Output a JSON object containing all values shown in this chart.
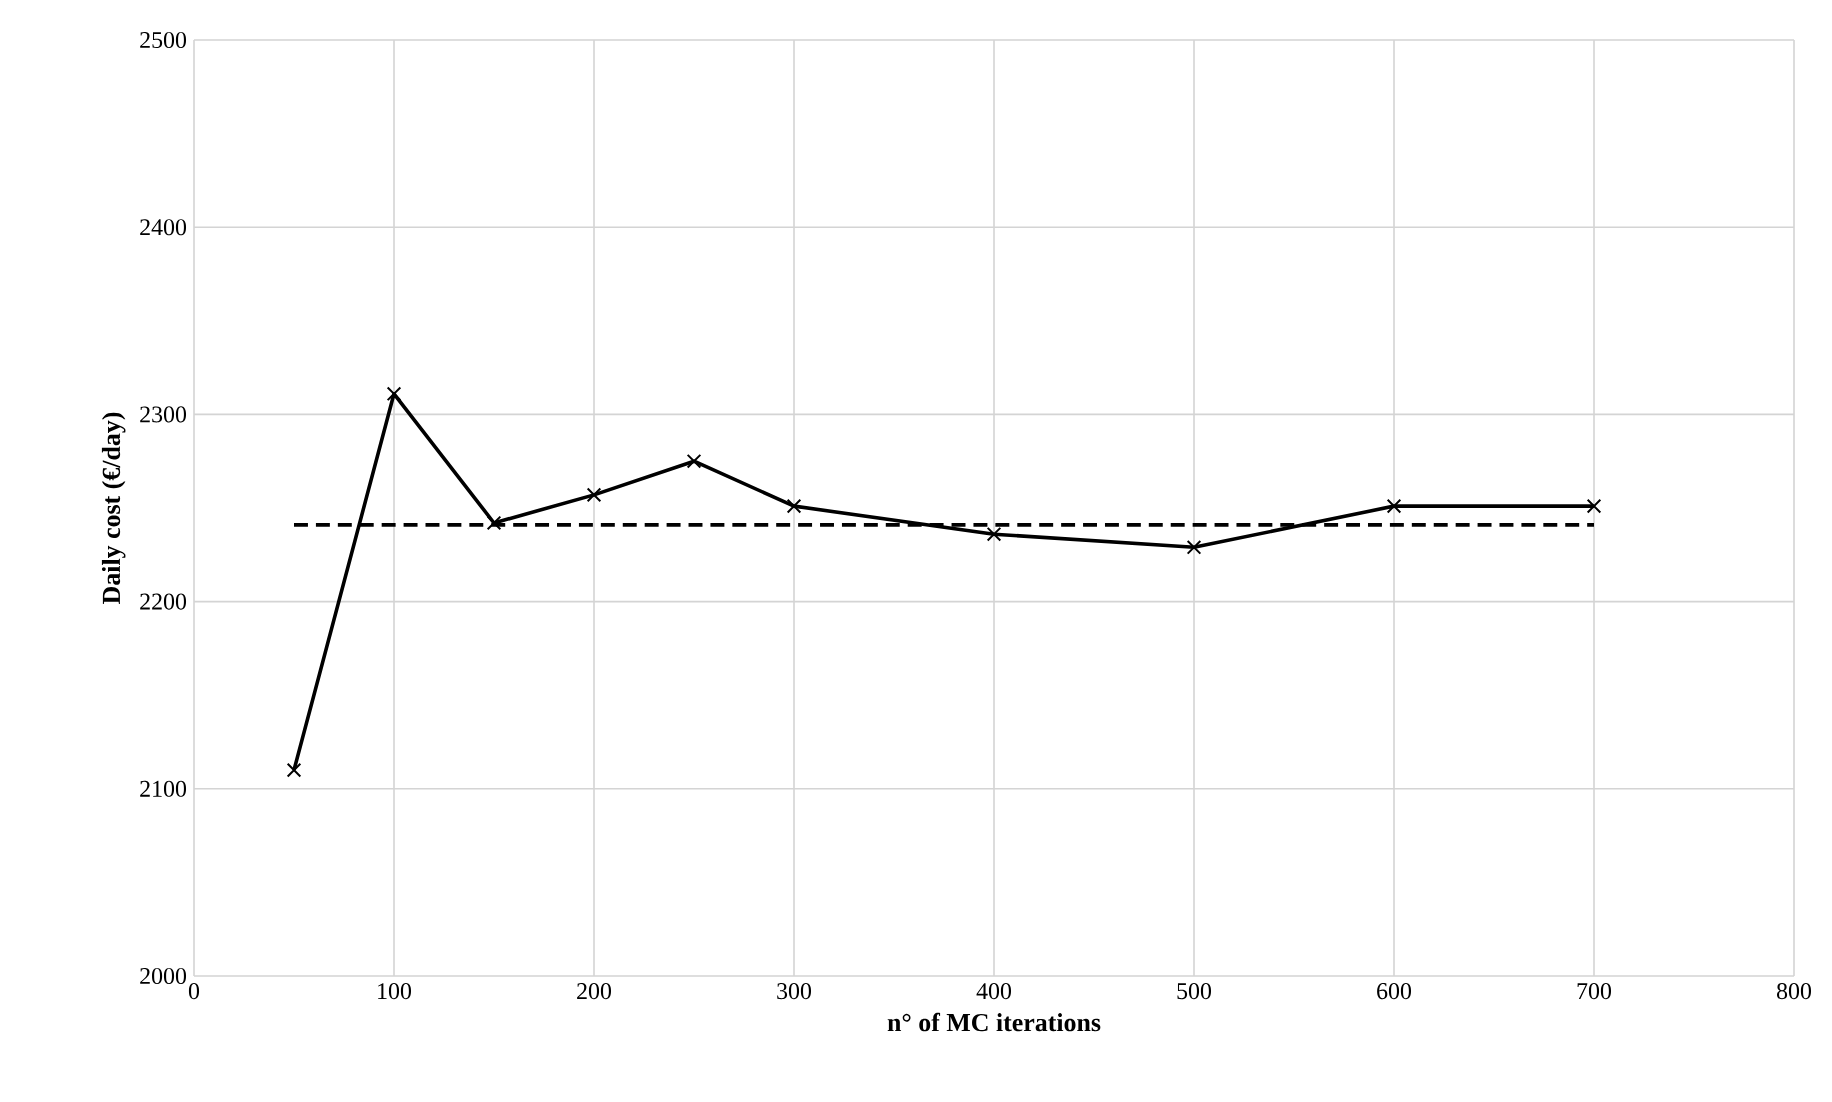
{
  "chart_data": {
    "type": "line",
    "xlabel": "n° of MC iterations",
    "ylabel": "Daily cost (€/day)",
    "xlim": [
      0,
      800
    ],
    "xticks": [
      0,
      100,
      200,
      300,
      400,
      500,
      600,
      700,
      800
    ],
    "ylim": [
      2000,
      2500
    ],
    "yticks": [
      2000,
      2100,
      2200,
      2300,
      2400,
      2500
    ],
    "grid": true,
    "series": [
      {
        "color": "#000000",
        "marker": "cross",
        "line_style": "solid",
        "x": [
          50,
          100,
          150,
          200,
          250,
          300,
          400,
          500,
          600,
          700
        ],
        "values": [
          2110,
          2311,
          2242,
          2257,
          2275,
          2251,
          2236,
          2229,
          2251,
          2251
        ]
      },
      {
        "color": "#000000",
        "marker": "none",
        "line_style": "dashed",
        "x": [
          50,
          700
        ],
        "values": [
          2241,
          2241
        ]
      }
    ]
  }
}
